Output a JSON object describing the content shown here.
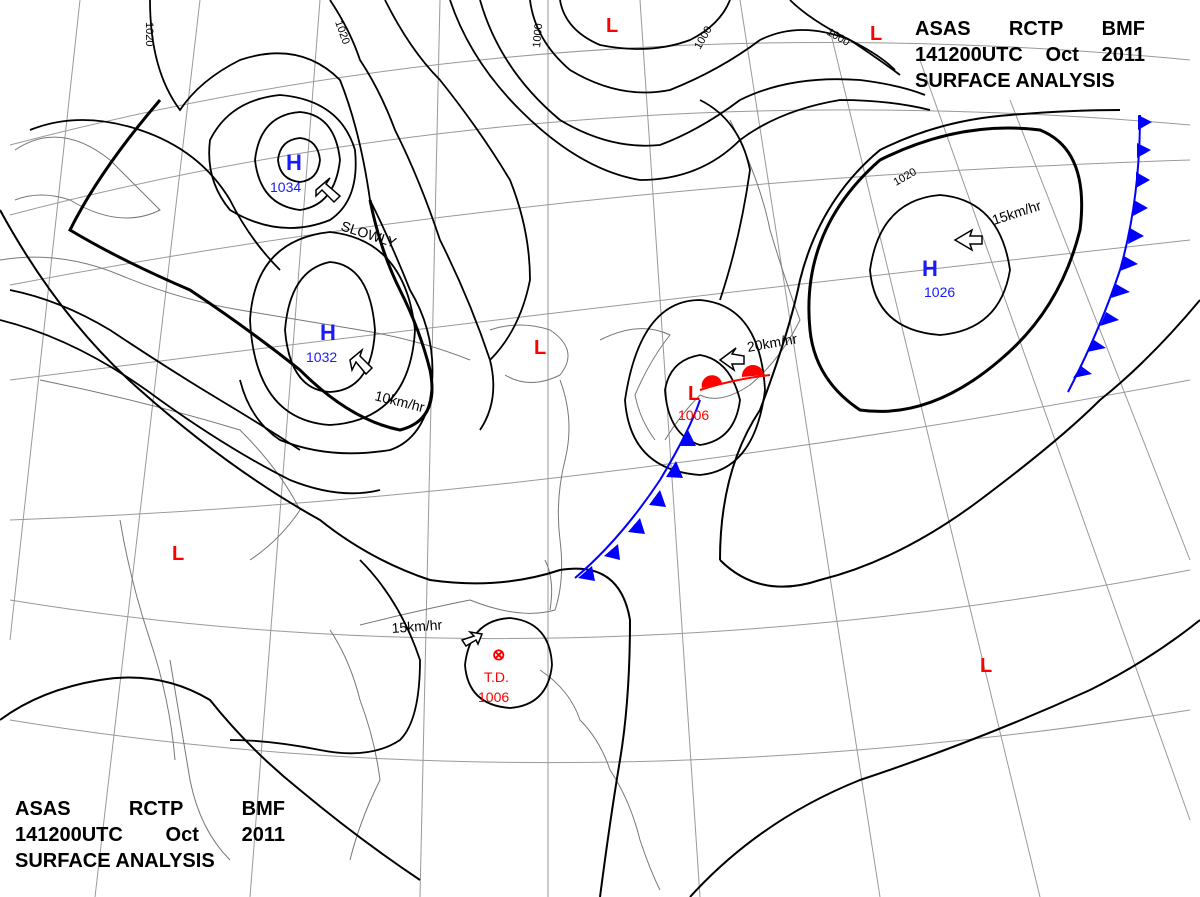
{
  "header": {
    "line1": [
      "ASAS",
      "RCTP",
      "BMF"
    ],
    "line2": [
      "141200UTC",
      "Oct",
      "2011"
    ],
    "line3": "SURFACE ANALYSIS"
  },
  "isobar_labels": [
    "1020",
    "1020",
    "1000",
    "1000",
    "1000",
    "1020"
  ],
  "highs": [
    {
      "symbol": "H",
      "pressure": "1034"
    },
    {
      "symbol": "H",
      "pressure": "1032"
    },
    {
      "symbol": "H",
      "pressure": "1026"
    }
  ],
  "lows": [
    {
      "symbol": "L"
    },
    {
      "symbol": "L"
    },
    {
      "symbol": "L"
    },
    {
      "symbol": "L"
    },
    {
      "symbol": "L"
    }
  ],
  "low_center": {
    "symbol": "L",
    "pressure": "1006"
  },
  "tropical_depression": {
    "symbol": "⊗",
    "label": "T.D.",
    "pressure": "1006"
  },
  "motion_labels": [
    "SLOWLY",
    "10km/hr",
    "20km/hr",
    "15km/hr",
    "15km/hr"
  ],
  "colors": {
    "high": "#1a1aff",
    "low": "#ff0000",
    "isobar": "#000000",
    "coast": "#777777",
    "grid": "#999999",
    "cold_front": "#0000ff",
    "warm_front": "#ff0000"
  }
}
